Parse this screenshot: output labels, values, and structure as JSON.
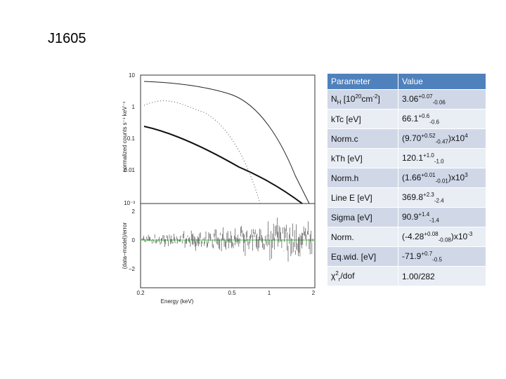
{
  "title": "J1605",
  "plot": {
    "ylabel": "normalized counts s⁻¹ keV⁻¹",
    "ylabel2": "(data−model)/error",
    "xlabel": "Energy (keV)",
    "yticks": [
      "10",
      "1",
      "0.1",
      "0.01",
      "10⁻³"
    ],
    "y2ticks": [
      "2",
      "0",
      "−2"
    ],
    "xticks": [
      "0.2",
      "0.5",
      "1",
      "2"
    ]
  },
  "table": {
    "header": [
      "Parameter",
      "Value"
    ],
    "rows": [
      {
        "name": [
          {
            "text": "N"
          },
          {
            "sub": "H"
          },
          {
            "text": " [10"
          },
          {
            "sup": "20"
          },
          {
            "text": "cm"
          },
          {
            "sup": "-2"
          },
          {
            "text": "]"
          }
        ],
        "value": [
          {
            "text": "3.06"
          },
          {
            "sup": "+0.07"
          },
          {
            "sub": "-0.06"
          }
        ]
      },
      {
        "name": [
          {
            "text": "kTc [eV]"
          }
        ],
        "value": [
          {
            "text": "66.1"
          },
          {
            "sup": "+0.6"
          },
          {
            "sub": "-0.6"
          }
        ]
      },
      {
        "name": [
          {
            "text": "Norm.c"
          }
        ],
        "value": [
          {
            "text": "(9.70"
          },
          {
            "sup": "+0.52"
          },
          {
            "sub": "-0.47"
          },
          {
            "text": ")x10"
          },
          {
            "sup": "4"
          }
        ]
      },
      {
        "name": [
          {
            "text": "kTh [eV]"
          }
        ],
        "value": [
          {
            "text": "120.1"
          },
          {
            "sup": "+1.0"
          },
          {
            "sub": "-1.0"
          }
        ]
      },
      {
        "name": [
          {
            "text": "Norm.h"
          }
        ],
        "value": [
          {
            "text": "(1.66"
          },
          {
            "sup": "+0.01"
          },
          {
            "sub": "-0.01"
          },
          {
            "text": ")x10"
          },
          {
            "sup": "3"
          }
        ]
      },
      {
        "name": [
          {
            "text": "Line E [eV]"
          }
        ],
        "value": [
          {
            "text": "369.8"
          },
          {
            "sup": "+2.3"
          },
          {
            "sub": "-2.4"
          }
        ]
      },
      {
        "name": [
          {
            "text": "Sigma [eV]"
          }
        ],
        "value": [
          {
            "text": "90.9"
          },
          {
            "sup": "+1.4"
          },
          {
            "sub": "-1.4"
          }
        ]
      },
      {
        "name": [
          {
            "text": "Norm."
          }
        ],
        "value": [
          {
            "text": "(-4.28"
          },
          {
            "sup": "+0.08"
          },
          {
            "sub": "-0.08"
          },
          {
            "text": ")x10"
          },
          {
            "sup": "-3"
          }
        ]
      },
      {
        "name": [
          {
            "text": "Eq.wid. [eV]"
          }
        ],
        "value": [
          {
            "text": "-71.9"
          },
          {
            "sup": "+0.7"
          },
          {
            "sub": "-0.5"
          }
        ]
      },
      {
        "name": [
          {
            "text": "χ"
          },
          {
            "sup": "2"
          },
          {
            "sub": "r"
          },
          {
            "text": "/dof"
          }
        ],
        "value": [
          {
            "text": "1.00/282"
          }
        ]
      }
    ]
  }
}
